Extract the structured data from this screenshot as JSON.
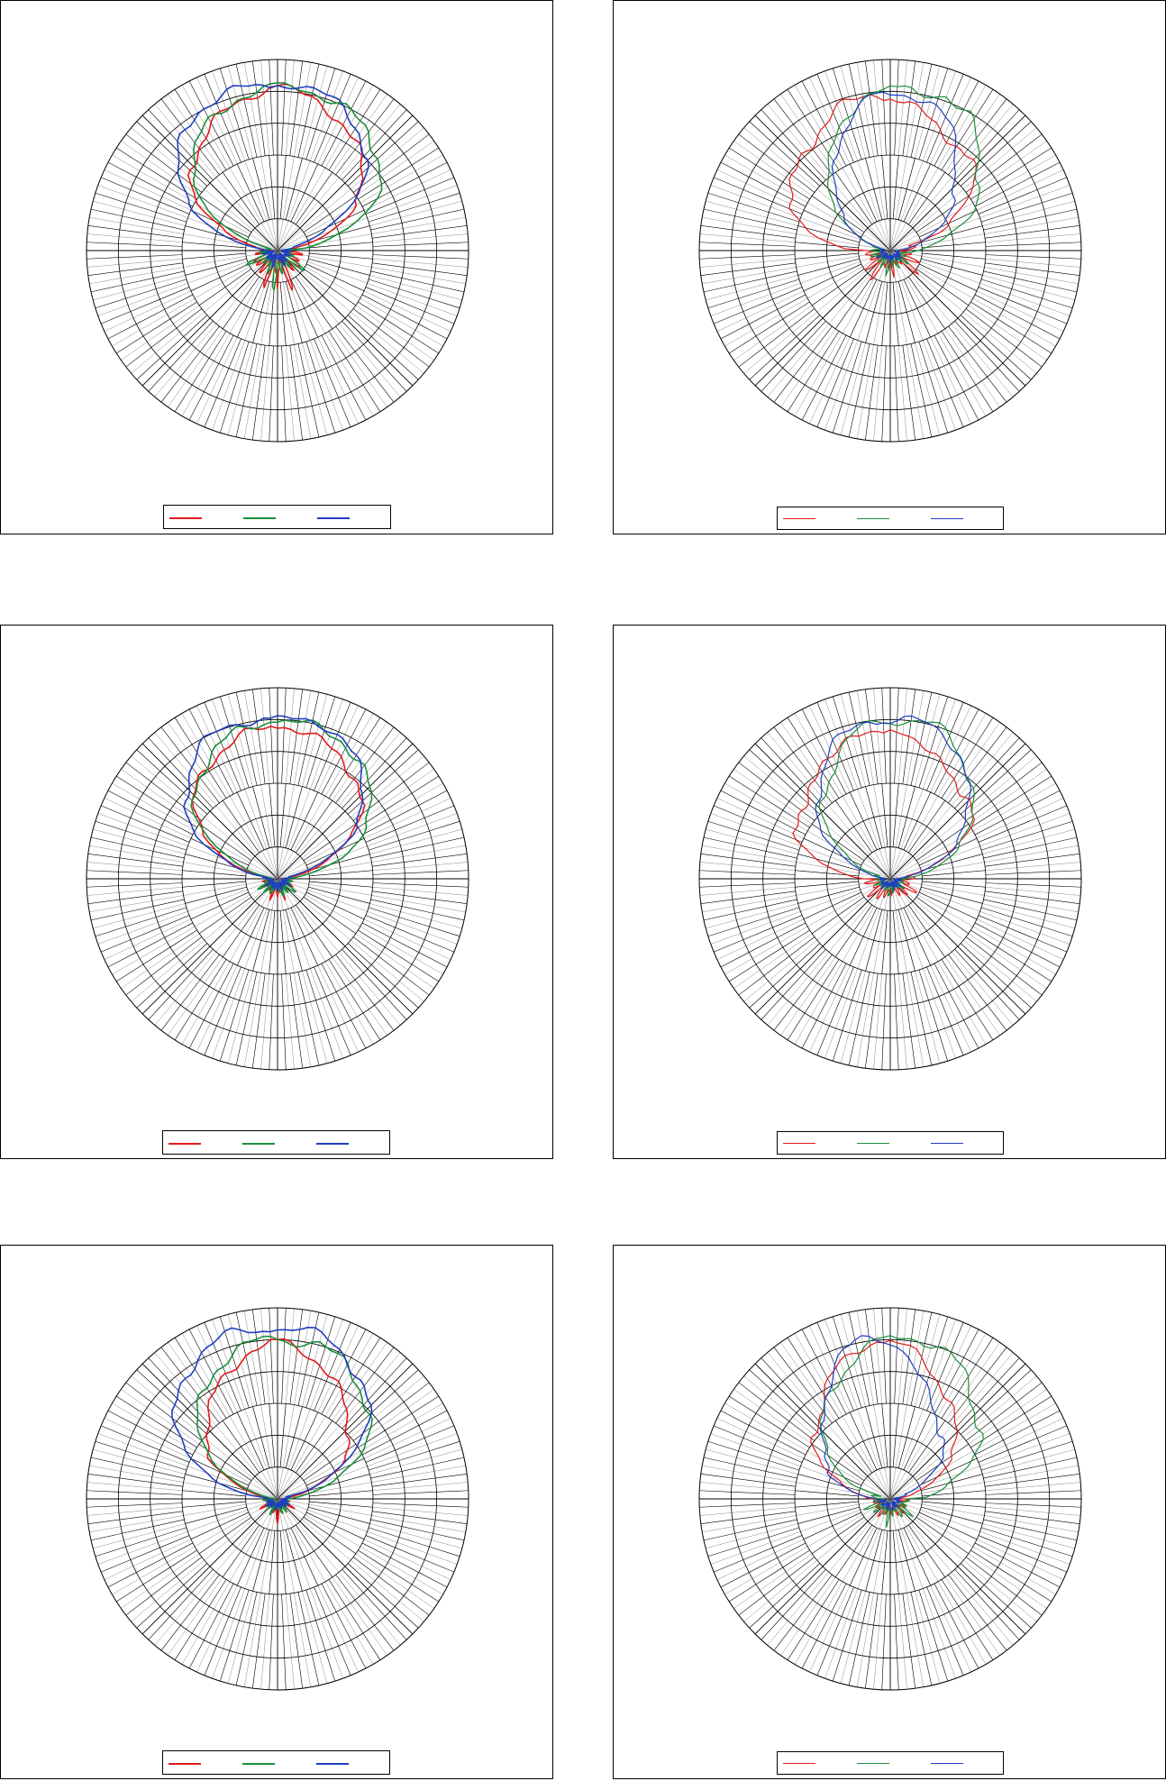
{
  "colors": {
    "red": "#e31a1c",
    "green": "#1a8f3c",
    "blue": "#1f3fbf",
    "grid_major": "#000000",
    "grid_minor": "#8a8a8a"
  },
  "chart_data": [
    {
      "type": "polar-line",
      "panel": "top-left",
      "rings": 6,
      "spokes_major": 8,
      "spokes_minor_every_deg": 5,
      "rlim": [
        0,
        1
      ],
      "series": [
        {
          "color": "#e31a1c",
          "label": "",
          "lobe": {
            "main": [
              0.88,
              0.84,
              0.8,
              0.74,
              0.68,
              0.6,
              0.48,
              0.3,
              0.12,
              0.06,
              0.14,
              0.08,
              0.22,
              0.1,
              0.16,
              0.07,
              0.24,
              0.05,
              0.2
            ],
            "tilt": 0
          }
        },
        {
          "color": "#1a8f3c",
          "label": "",
          "lobe": {
            "main": [
              0.88,
              0.86,
              0.84,
              0.8,
              0.74,
              0.66,
              0.54,
              0.32,
              0.12,
              0.05,
              0.12,
              0.06,
              0.2,
              0.08,
              0.12,
              0.06,
              0.18,
              0.05,
              0.24
            ],
            "tilt": 6
          }
        },
        {
          "color": "#1f3fbf",
          "label": "",
          "lobe": {
            "main": [
              0.86,
              0.9,
              0.88,
              0.82,
              0.76,
              0.66,
              0.5,
              0.3,
              0.1,
              0.04,
              0.08,
              0.04,
              0.1,
              0.05,
              0.08,
              0.04,
              0.1,
              0.04,
              0.06
            ],
            "tilt": -4
          }
        }
      ]
    },
    {
      "type": "polar-line",
      "panel": "top-right",
      "rings": 6,
      "spokes_major": 8,
      "spokes_minor_every_deg": 5,
      "rlim": [
        0,
        1
      ],
      "series": [
        {
          "color": "#e31a1c",
          "label": "",
          "lobe": {
            "main": [
              0.84,
              0.82,
              0.76,
              0.7,
              0.66,
              0.64,
              0.58,
              0.4,
              0.24,
              0.14,
              0.1,
              0.12,
              0.18,
              0.1,
              0.22,
              0.08,
              0.12,
              0.06,
              0.16
            ],
            "tilt": -8
          }
        },
        {
          "color": "#1a8f3c",
          "label": "",
          "lobe": {
            "main": [
              0.84,
              0.88,
              0.84,
              0.72,
              0.62,
              0.54,
              0.4,
              0.26,
              0.14,
              0.08,
              0.1,
              0.08,
              0.14,
              0.06,
              0.12,
              0.06,
              0.1,
              0.05,
              0.14
            ],
            "tilt": 10
          }
        },
        {
          "color": "#1f3fbf",
          "label": "",
          "lobe": {
            "main": [
              0.82,
              0.84,
              0.76,
              0.62,
              0.5,
              0.4,
              0.3,
              0.18,
              0.08,
              0.05,
              0.06,
              0.05,
              0.08,
              0.04,
              0.07,
              0.04,
              0.06,
              0.04,
              0.08
            ],
            "tilt": 4
          }
        }
      ]
    },
    {
      "type": "polar-line",
      "panel": "middle-left",
      "rings": 6,
      "spokes_major": 8,
      "spokes_minor_every_deg": 5,
      "rlim": [
        0,
        1
      ],
      "series": [
        {
          "color": "#e31a1c",
          "label": "",
          "lobe": {
            "main": [
              0.82,
              0.8,
              0.76,
              0.72,
              0.66,
              0.58,
              0.46,
              0.28,
              0.1,
              0.04,
              0.08,
              0.05,
              0.12,
              0.05,
              0.1,
              0.05,
              0.12,
              0.04,
              0.1
            ],
            "tilt": 0
          }
        },
        {
          "color": "#1a8f3c",
          "label": "",
          "lobe": {
            "main": [
              0.84,
              0.84,
              0.82,
              0.76,
              0.7,
              0.62,
              0.5,
              0.3,
              0.12,
              0.05,
              0.1,
              0.06,
              0.14,
              0.06,
              0.1,
              0.05,
              0.14,
              0.04,
              0.08
            ],
            "tilt": 4
          }
        },
        {
          "color": "#1f3fbf",
          "label": "",
          "lobe": {
            "main": [
              0.84,
              0.86,
              0.86,
              0.8,
              0.72,
              0.62,
              0.48,
              0.28,
              0.1,
              0.04,
              0.06,
              0.04,
              0.08,
              0.04,
              0.06,
              0.04,
              0.07,
              0.04,
              0.06
            ],
            "tilt": -2
          }
        }
      ]
    },
    {
      "type": "polar-line",
      "panel": "middle-right",
      "rings": 6,
      "spokes_major": 8,
      "spokes_minor_every_deg": 5,
      "rlim": [
        0,
        1
      ],
      "series": [
        {
          "color": "#e31a1c",
          "label": "",
          "lobe": {
            "main": [
              0.76,
              0.8,
              0.74,
              0.66,
              0.62,
              0.6,
              0.54,
              0.4,
              0.22,
              0.14,
              0.12,
              0.1,
              0.18,
              0.1,
              0.14,
              0.08,
              0.12,
              0.06,
              0.14
            ],
            "tilt": -6
          }
        },
        {
          "color": "#1a8f3c",
          "label": "",
          "lobe": {
            "main": [
              0.84,
              0.86,
              0.8,
              0.7,
              0.6,
              0.52,
              0.4,
              0.24,
              0.12,
              0.06,
              0.08,
              0.05,
              0.1,
              0.05,
              0.08,
              0.04,
              0.08,
              0.04,
              0.1
            ],
            "tilt": 6
          }
        },
        {
          "color": "#1f3fbf",
          "label": "",
          "lobe": {
            "main": [
              0.84,
              0.86,
              0.82,
              0.72,
              0.62,
              0.52,
              0.4,
              0.24,
              0.1,
              0.05,
              0.06,
              0.04,
              0.08,
              0.04,
              0.07,
              0.04,
              0.06,
              0.04,
              0.06
            ],
            "tilt": 2
          }
        }
      ]
    },
    {
      "type": "polar-line",
      "panel": "bottom-left",
      "rings": 6,
      "spokes_major": 8,
      "spokes_minor_every_deg": 5,
      "rlim": [
        0,
        1
      ],
      "series": [
        {
          "color": "#e31a1c",
          "label": "",
          "lobe": {
            "main": [
              0.84,
              0.8,
              0.74,
              0.66,
              0.58,
              0.5,
              0.4,
              0.24,
              0.1,
              0.04,
              0.08,
              0.05,
              0.1,
              0.04,
              0.08,
              0.04,
              0.1,
              0.04,
              0.12
            ],
            "tilt": 0
          }
        },
        {
          "color": "#1a8f3c",
          "label": "",
          "lobe": {
            "main": [
              0.84,
              0.86,
              0.82,
              0.76,
              0.68,
              0.6,
              0.48,
              0.28,
              0.1,
              0.04,
              0.08,
              0.04,
              0.1,
              0.04,
              0.08,
              0.04,
              0.1,
              0.04,
              0.08
            ],
            "tilt": 4
          }
        },
        {
          "color": "#1f3fbf",
          "label": "",
          "lobe": {
            "main": [
              0.9,
              0.92,
              0.9,
              0.84,
              0.76,
              0.68,
              0.54,
              0.32,
              0.12,
              0.05,
              0.06,
              0.04,
              0.08,
              0.04,
              0.06,
              0.04,
              0.06,
              0.04,
              0.05
            ],
            "tilt": -4
          }
        }
      ]
    },
    {
      "type": "polar-line",
      "panel": "bottom-right",
      "rings": 6,
      "spokes_major": 8,
      "spokes_minor_every_deg": 5,
      "rlim": [
        0,
        1
      ],
      "series": [
        {
          "color": "#e31a1c",
          "label": "",
          "lobe": {
            "main": [
              0.84,
              0.82,
              0.74,
              0.64,
              0.56,
              0.5,
              0.4,
              0.26,
              0.14,
              0.08,
              0.1,
              0.06,
              0.14,
              0.06,
              0.12,
              0.05,
              0.1,
              0.05,
              0.14
            ],
            "tilt": -4
          }
        },
        {
          "color": "#1a8f3c",
          "label": "",
          "lobe": {
            "main": [
              0.86,
              0.86,
              0.8,
              0.7,
              0.62,
              0.56,
              0.44,
              0.3,
              0.18,
              0.1,
              0.1,
              0.08,
              0.16,
              0.06,
              0.14,
              0.06,
              0.12,
              0.05,
              0.16
            ],
            "tilt": 8
          }
        },
        {
          "color": "#1f3fbf",
          "label": "",
          "lobe": {
            "main": [
              0.86,
              0.84,
              0.7,
              0.56,
              0.48,
              0.42,
              0.34,
              0.22,
              0.1,
              0.05,
              0.06,
              0.04,
              0.08,
              0.04,
              0.06,
              0.04,
              0.06,
              0.04,
              0.08
            ],
            "tilt": -8
          }
        }
      ]
    }
  ],
  "legends": [
    {
      "style": "thick",
      "items": [
        {
          "color": "#e31a1c",
          "label": ""
        },
        {
          "color": "#1a8f3c",
          "label": ""
        },
        {
          "color": "#1f3fbf",
          "label": ""
        }
      ]
    },
    {
      "style": "thin",
      "items": [
        {
          "color": "#e31a1c",
          "label": ""
        },
        {
          "color": "#1a8f3c",
          "label": ""
        },
        {
          "color": "#1f3fbf",
          "label": ""
        }
      ]
    },
    {
      "style": "thick",
      "items": [
        {
          "color": "#e31a1c",
          "label": ""
        },
        {
          "color": "#1a8f3c",
          "label": ""
        },
        {
          "color": "#1f3fbf",
          "label": ""
        }
      ]
    },
    {
      "style": "thin",
      "items": [
        {
          "color": "#e31a1c",
          "label": ""
        },
        {
          "color": "#1a8f3c",
          "label": ""
        },
        {
          "color": "#1f3fbf",
          "label": ""
        }
      ]
    },
    {
      "style": "thick",
      "items": [
        {
          "color": "#e31a1c",
          "label": ""
        },
        {
          "color": "#1a8f3c",
          "label": ""
        },
        {
          "color": "#1f3fbf",
          "label": ""
        }
      ]
    },
    {
      "style": "thin",
      "items": [
        {
          "color": "#e31a1c",
          "label": ""
        },
        {
          "color": "#1a8f3c",
          "label": ""
        },
        {
          "color": "#1f3fbf",
          "label": ""
        }
      ]
    }
  ]
}
